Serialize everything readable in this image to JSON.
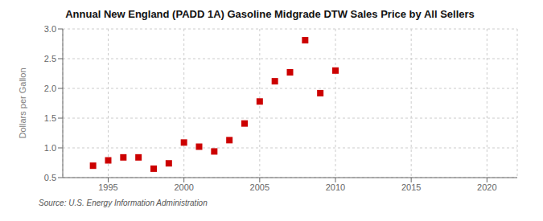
{
  "chart_data": {
    "type": "scatter",
    "title": "Annual New England (PADD 1A) Gasoline Midgrade DTW Sales Price by All Sellers",
    "ylabel": "Dollars per Gallon",
    "source": "Source: U.S. Energy Information Administration",
    "x": [
      1994,
      1995,
      1996,
      1997,
      1998,
      1999,
      2000,
      2001,
      2002,
      2003,
      2004,
      2005,
      2006,
      2007,
      2008,
      2009,
      2010
    ],
    "values": [
      0.7,
      0.79,
      0.84,
      0.84,
      0.65,
      0.74,
      1.09,
      1.02,
      0.94,
      1.13,
      1.41,
      1.78,
      2.12,
      2.27,
      2.81,
      1.92,
      2.3
    ],
    "color": "#cc0000",
    "marker": "square",
    "xlim": [
      1992,
      2022
    ],
    "ylim": [
      0.5,
      3.0
    ],
    "xticks": [
      1995,
      2000,
      2005,
      2010,
      2015,
      2020
    ],
    "yticks": [
      0.5,
      {
        "value": 1.0,
        "label": "1.0"
      },
      1.5,
      {
        "value": 2.0,
        "label": "2.0"
      },
      2.5,
      {
        "value": 3.0,
        "label": "3.0"
      }
    ],
    "grid": true
  }
}
